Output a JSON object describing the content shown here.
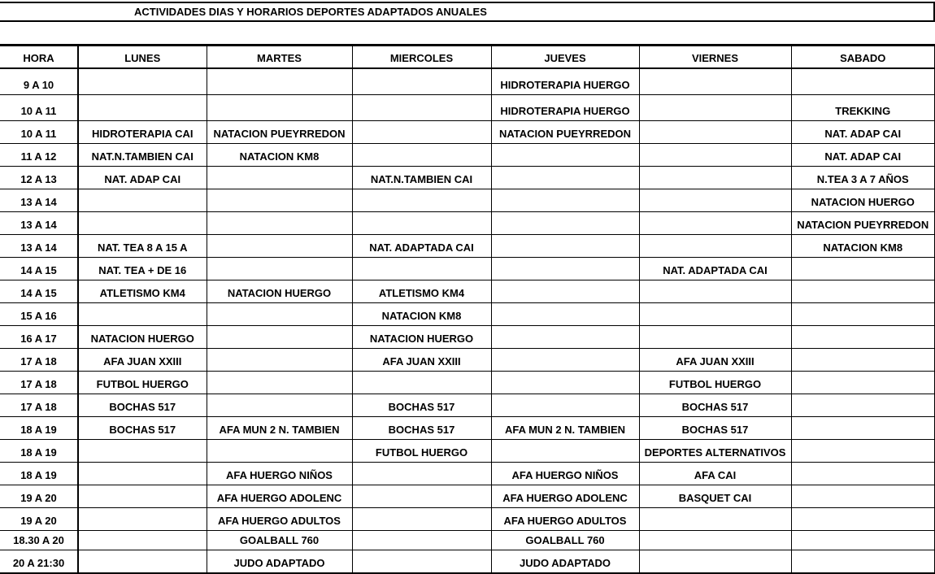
{
  "title": "ACTIVIDADES DIAS Y HORARIOS DEPORTES ADAPTADOS ANUALES",
  "headers": [
    "HORA",
    "LUNES",
    "MARTES",
    "MIERCOLES",
    "JUEVES",
    "VIERNES",
    "SABADO"
  ],
  "rows": [
    [
      "9 A 10",
      "",
      "",
      "",
      "HIDROTERAPIA HUERGO",
      "",
      ""
    ],
    [
      "10 A 11",
      "",
      "",
      "",
      "HIDROTERAPIA HUERGO",
      "",
      "TREKKING"
    ],
    [
      "10 A 11",
      "HIDROTERAPIA CAI",
      "NATACION PUEYRREDON",
      "",
      "NATACION PUEYRREDON",
      "",
      "NAT. ADAP CAI"
    ],
    [
      "11 A 12",
      "NAT.N.TAMBIEN CAI",
      "NATACION  KM8",
      "",
      "",
      "",
      "NAT. ADAP CAI"
    ],
    [
      "12 A 13",
      "NAT. ADAP CAI",
      "",
      "NAT.N.TAMBIEN CAI",
      "",
      "",
      "N.TEA 3 A 7 AÑOS"
    ],
    [
      "13 A 14",
      "",
      "",
      "",
      "",
      "",
      "NATACION HUERGO"
    ],
    [
      "13 A 14",
      "",
      "",
      "",
      "",
      "",
      "NATACION PUEYRREDON"
    ],
    [
      "13 A 14",
      "NAT. TEA 8 A 15 A",
      "",
      "NAT. ADAPTADA CAI",
      "",
      "",
      "NATACION  KM8"
    ],
    [
      "14 A 15",
      "NAT. TEA + DE 16",
      "",
      "",
      "",
      "NAT. ADAPTADA CAI",
      ""
    ],
    [
      "14 A 15",
      "ATLETISMO KM4",
      "NATACION HUERGO",
      "ATLETISMO KM4",
      "",
      "",
      ""
    ],
    [
      "15 A 16",
      "",
      "",
      "NATACION  KM8",
      "",
      "",
      ""
    ],
    [
      "16 A 17",
      "NATACION HUERGO",
      "",
      "NATACION HUERGO",
      "",
      "",
      ""
    ],
    [
      "17 A 18",
      "AFA JUAN XXIII",
      "",
      "AFA JUAN XXIII",
      "",
      "AFA JUAN XXIII",
      ""
    ],
    [
      "17 A 18",
      "FUTBOL HUERGO",
      "",
      "",
      "",
      "FUTBOL HUERGO",
      ""
    ],
    [
      "17 A 18",
      "BOCHAS 517",
      "",
      "BOCHAS 517",
      "",
      "BOCHAS 517",
      ""
    ],
    [
      "18 A 19",
      "BOCHAS 517",
      "AFA MUN 2 N. TAMBIEN",
      "BOCHAS 517",
      "AFA MUN 2 N. TAMBIEN",
      "BOCHAS 517",
      ""
    ],
    [
      "18 A 19",
      "",
      "",
      "FUTBOL HUERGO",
      "",
      "DEPORTES ALTERNATIVOS",
      ""
    ],
    [
      "18 A 19",
      "",
      "AFA HUERGO NIÑOS",
      "",
      "AFA HUERGO NIÑOS",
      "AFA CAI",
      ""
    ],
    [
      "19 A 20",
      "",
      "AFA HUERGO ADOLENC",
      "",
      "AFA HUERGO ADOLENC",
      "BASQUET CAI",
      ""
    ],
    [
      "19 A 20",
      "",
      "AFA HUERGO ADULTOS",
      "",
      "AFA HUERGO ADULTOS",
      "",
      ""
    ],
    [
      "18.30 A 20",
      "",
      "GOALBALL 760",
      "",
      "GOALBALL 760",
      "",
      ""
    ],
    [
      "20 A 21:30",
      "",
      "JUDO ADAPTADO",
      "",
      "JUDO ADAPTADO",
      "",
      ""
    ]
  ]
}
